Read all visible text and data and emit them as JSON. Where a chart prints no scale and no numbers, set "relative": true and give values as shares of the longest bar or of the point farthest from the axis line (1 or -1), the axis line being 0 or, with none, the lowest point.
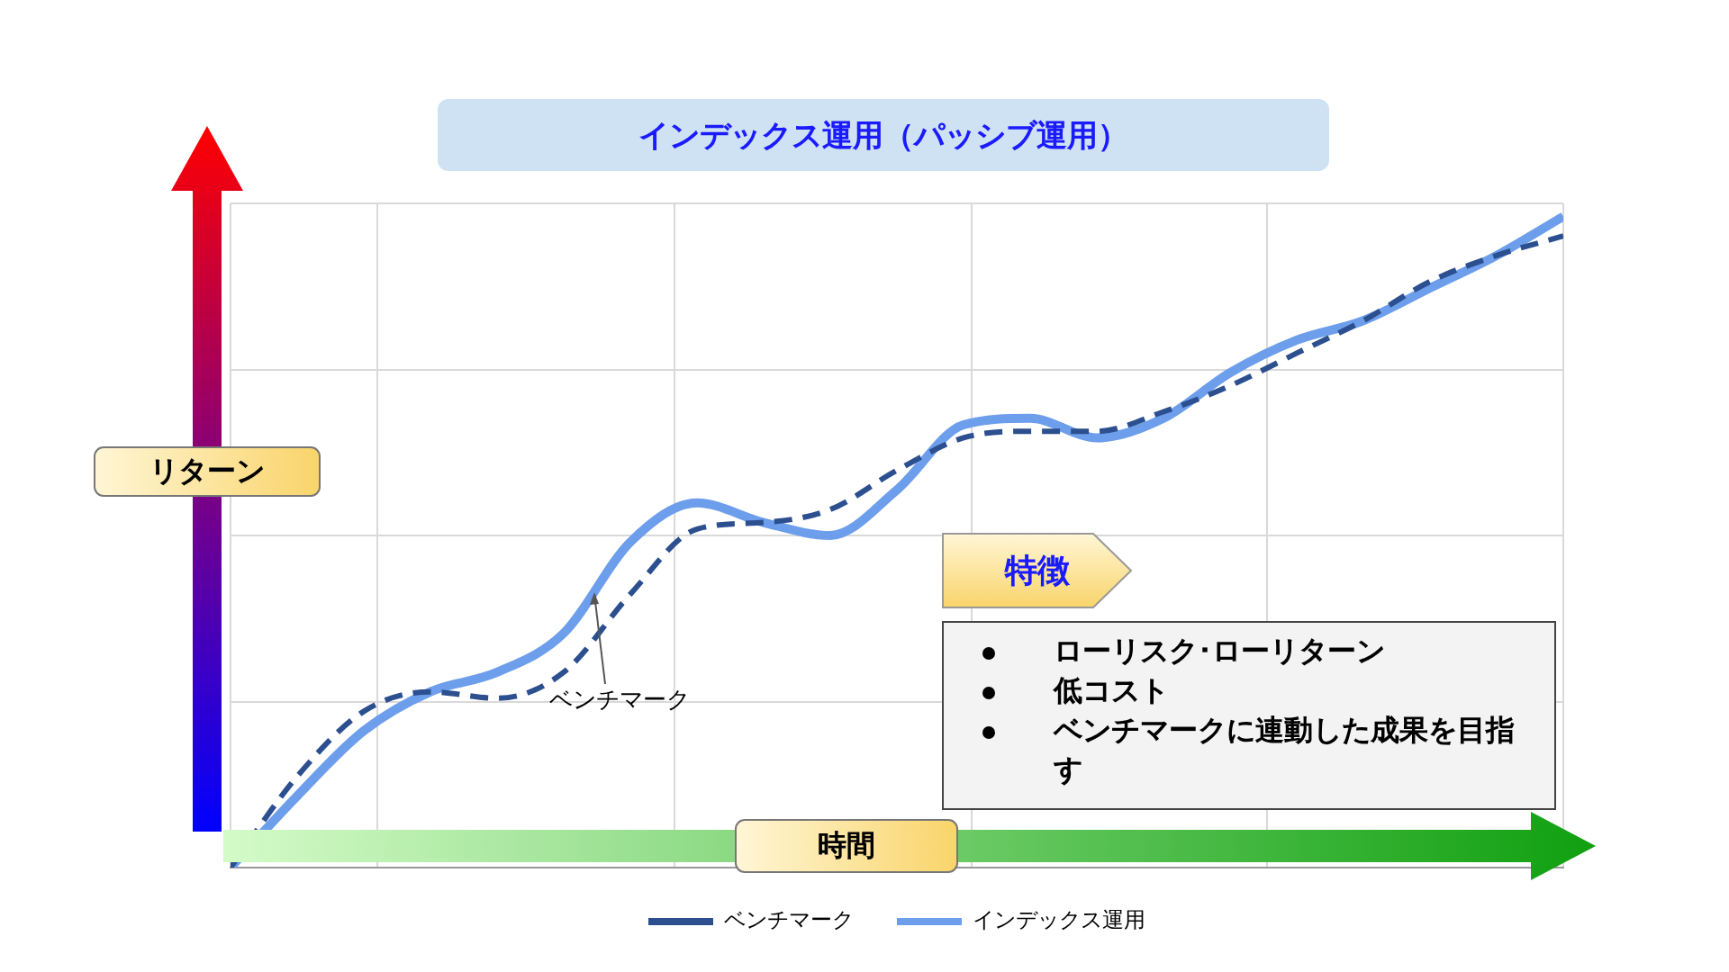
{
  "chart_data": {
    "type": "line",
    "title": "インデックス運用（パッシブ運用）",
    "xlabel": "時間",
    "ylabel": "リターン",
    "relative": true,
    "grid": true,
    "legend": "bottom",
    "marker": "none",
    "categories": [
      null,
      null,
      null,
      null,
      null,
      null,
      null,
      null,
      null,
      null,
      null,
      null,
      null,
      null,
      null,
      null,
      null,
      null,
      null,
      null,
      null
    ],
    "series": [
      {
        "name": "ベンチマーク",
        "color": "#2b4f8f",
        "line_style": "dashed",
        "values": [
          0,
          0.14,
          0.24,
          0.27,
          0.26,
          0.3,
          0.42,
          0.52,
          0.53,
          0.55,
          0.61,
          0.66,
          0.67,
          0.67,
          0.7,
          0.74,
          0.79,
          0.84,
          0.9,
          0.94,
          0.97
        ]
      },
      {
        "name": "インデックス運用",
        "color": "#6d9eeb",
        "line_style": "solid",
        "values": [
          0,
          0.11,
          0.21,
          0.27,
          0.3,
          0.36,
          0.5,
          0.56,
          0.53,
          0.51,
          0.58,
          0.68,
          0.69,
          0.66,
          0.69,
          0.76,
          0.81,
          0.84,
          0.89,
          0.94,
          1
        ]
      }
    ],
    "annotations": [
      "ベンチマーク",
      "特徴",
      "ローリスク･ローリターン",
      "低コスト",
      "ベンチマークに連動した成果を目指す"
    ]
  }
}
